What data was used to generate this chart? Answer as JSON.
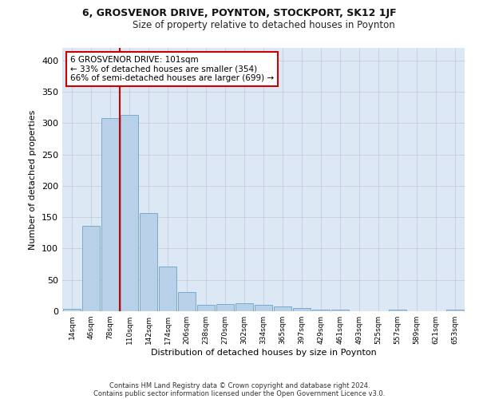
{
  "title": "6, GROSVENOR DRIVE, POYNTON, STOCKPORT, SK12 1JF",
  "subtitle": "Size of property relative to detached houses in Poynton",
  "xlabel": "Distribution of detached houses by size in Poynton",
  "ylabel": "Number of detached properties",
  "bar_color": "#b8d0e8",
  "bar_edge_color": "#7aaacb",
  "background_color": "#ffffff",
  "plot_bg_color": "#dce9f5",
  "grid_color": "#c0c8d8",
  "annotation_box_color": "#cc0000",
  "annotation_line_color": "#cc0000",
  "annotation_line1": "6 GROSVENOR DRIVE: 101sqm",
  "annotation_line2": "← 33% of detached houses are smaller (354)",
  "annotation_line3": "66% of semi-detached houses are larger (699) →",
  "categories": [
    "14sqm",
    "46sqm",
    "78sqm",
    "110sqm",
    "142sqm",
    "174sqm",
    "206sqm",
    "238sqm",
    "270sqm",
    "302sqm",
    "334sqm",
    "365sqm",
    "397sqm",
    "429sqm",
    "461sqm",
    "493sqm",
    "525sqm",
    "557sqm",
    "589sqm",
    "621sqm",
    "653sqm"
  ],
  "values": [
    4,
    136,
    308,
    313,
    156,
    71,
    31,
    10,
    12,
    13,
    10,
    8,
    5,
    3,
    2,
    0,
    0,
    2,
    0,
    0,
    2
  ],
  "ylim": [
    0,
    420
  ],
  "yticks": [
    0,
    50,
    100,
    150,
    200,
    250,
    300,
    350,
    400
  ],
  "footnote1": "Contains HM Land Registry data © Crown copyright and database right 2024.",
  "footnote2": "Contains public sector information licensed under the Open Government Licence v3.0."
}
